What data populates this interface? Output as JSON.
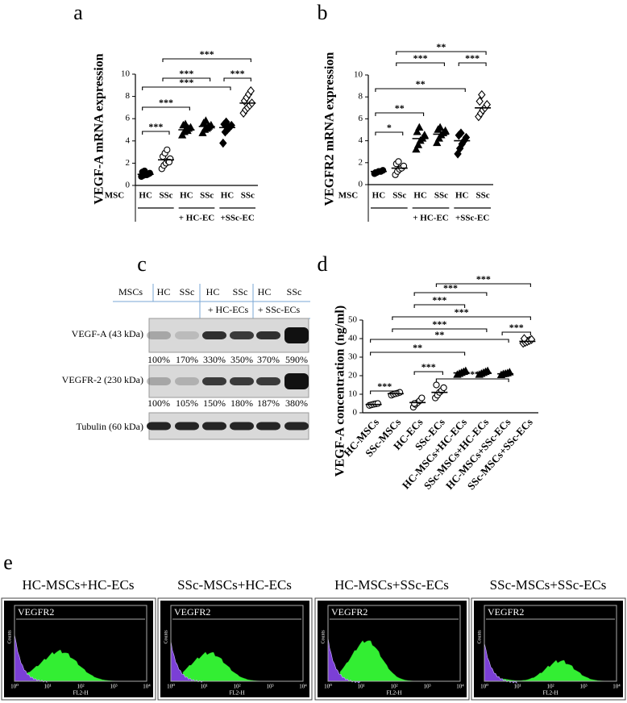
{
  "panels": [
    "a",
    "b",
    "c",
    "d",
    "e"
  ],
  "chart_data": [
    {
      "type": "dot",
      "ylabel": "VEGF-A mRNA expression",
      "ylim": [
        0,
        10
      ],
      "yticks": [
        0,
        2,
        4,
        6,
        8,
        10
      ],
      "row_label": "MSC",
      "categories": [
        "HC",
        "SSc",
        "HC",
        "SSc",
        "HC",
        "SSc"
      ],
      "group_labels": [
        null,
        "+ HC-EC",
        "+SSc-EC"
      ],
      "markers": [
        "circle",
        "circle-open",
        "triangle",
        "triangle",
        "diamond",
        "diamond-open"
      ],
      "points": [
        [
          0.8,
          0.9,
          1.0,
          1.0,
          1.1,
          1.2,
          1.3,
          0.95,
          1.05
        ],
        [
          1.5,
          1.8,
          2.0,
          2.2,
          2.4,
          2.6,
          2.9,
          3.2,
          2.1
        ],
        [
          4.5,
          4.8,
          5.0,
          5.1,
          5.2,
          5.4,
          5.5,
          4.9
        ],
        [
          4.7,
          5.0,
          5.1,
          5.3,
          5.4,
          5.6,
          5.8,
          5.2
        ],
        [
          3.8,
          4.8,
          5.0,
          5.2,
          5.4,
          5.5,
          5.7,
          5.3
        ],
        [
          6.5,
          6.8,
          7.0,
          7.2,
          7.4,
          7.6,
          7.9,
          8.2,
          8.5
        ]
      ],
      "means": [
        1.0,
        2.3,
        5.0,
        5.3,
        5.2,
        7.4
      ],
      "brackets": [
        {
          "pair": [
            1,
            5
          ],
          "label": "***"
        },
        {
          "pair": [
            1,
            3
          ],
          "label": "***"
        },
        {
          "pair": [
            4,
            5
          ],
          "label": "***"
        },
        {
          "pair": [
            0,
            4
          ],
          "label": "***"
        },
        {
          "pair": [
            0,
            2
          ],
          "label": "***"
        },
        {
          "pair": [
            0,
            1
          ],
          "label": "***"
        }
      ]
    },
    {
      "type": "dot",
      "ylabel": "VEGFR2 mRNA expression",
      "ylim": [
        0,
        10
      ],
      "yticks": [
        0,
        2,
        4,
        6,
        8,
        10
      ],
      "row_label": "MSC",
      "categories": [
        "HC",
        "SSc",
        "HC",
        "SSc",
        "HC",
        "SSc"
      ],
      "group_labels": [
        null,
        "+ HC-EC",
        "+SSc-EC"
      ],
      "markers": [
        "circle",
        "circle-open",
        "triangle",
        "triangle",
        "diamond",
        "diamond-open"
      ],
      "points": [
        [
          1.0,
          1.1,
          1.2,
          1.2,
          1.3,
          1.1
        ],
        [
          0.9,
          1.2,
          1.4,
          1.5,
          1.7,
          1.9,
          2.1
        ],
        [
          3.2,
          3.6,
          4.0,
          4.2,
          4.5,
          4.8,
          5.2
        ],
        [
          3.8,
          4.2,
          4.5,
          4.7,
          4.9,
          5.0,
          5.2
        ],
        [
          2.8,
          3.3,
          3.7,
          4.0,
          4.3,
          4.5,
          4.7
        ],
        [
          6.2,
          6.5,
          6.8,
          7.0,
          7.3,
          7.6,
          8.2
        ]
      ],
      "means": [
        1.2,
        1.5,
        4.2,
        4.6,
        4.0,
        7.0
      ],
      "brackets": [
        {
          "pair": [
            1,
            5
          ],
          "label": "**"
        },
        {
          "pair": [
            1,
            3
          ],
          "label": "***"
        },
        {
          "pair": [
            4,
            5
          ],
          "label": "***"
        },
        {
          "pair": [
            0,
            4
          ],
          "label": "**"
        },
        {
          "pair": [
            0,
            2
          ],
          "label": "**"
        },
        {
          "pair": [
            0,
            1
          ],
          "label": "*"
        }
      ]
    },
    {
      "type": "dot",
      "ylabel": "VEGF-A concentration (ng/ml)",
      "ylim": [
        0,
        50
      ],
      "yticks": [
        0,
        10,
        20,
        30,
        40,
        50
      ],
      "categories": [
        "HC-MSCs",
        "SSc-MSCs",
        "HC-ECs",
        "SSc-ECs",
        "HC-MSCs+HC-ECs",
        "SSc-MSCs+HC-ECs",
        "HC-MSCs+SSc-ECs",
        "SSc-MSCs+SSc-ECs"
      ],
      "markers": [
        "circle-open",
        "circle-open",
        "circle-open",
        "circle-open",
        "triangle",
        "triangle",
        "triangle",
        "diamond-open"
      ],
      "points": [
        [
          4.0,
          4.3,
          4.6,
          4.8,
          5.0
        ],
        [
          9.5,
          10.0,
          10.3,
          10.6,
          11.0
        ],
        [
          3.0,
          4.5,
          5.5,
          6.5,
          8.0,
          5.0
        ],
        [
          8.0,
          9.5,
          11.0,
          12.0,
          13.5,
          15.0
        ],
        [
          20.5,
          21.0,
          21.5,
          22.0,
          22.5
        ],
        [
          20.5,
          21.0,
          21.5,
          22.0,
          22.5
        ],
        [
          20.3,
          20.8,
          21.0,
          21.3,
          21.8
        ],
        [
          37.5,
          38.0,
          38.5,
          39.0,
          39.5,
          40.0
        ]
      ],
      "means": [
        4.5,
        10.3,
        5.5,
        11.0,
        21.5,
        21.5,
        21.0,
        38.5
      ],
      "brackets": [
        {
          "pair": [
            3,
            7
          ],
          "label": "***"
        },
        {
          "pair": [
            2,
            5
          ],
          "label": "***"
        },
        {
          "pair": [
            2,
            4
          ],
          "label": "***"
        },
        {
          "pair": [
            1,
            7
          ],
          "label": "***"
        },
        {
          "pair": [
            1,
            5
          ],
          "label": "***"
        },
        {
          "pair": [
            0,
            6
          ],
          "label": "**"
        },
        {
          "pair": [
            6,
            7
          ],
          "label": "***"
        },
        {
          "pair": [
            0,
            4
          ],
          "label": "**"
        },
        {
          "pair": [
            2,
            3
          ],
          "label": "***"
        },
        {
          "pair": [
            3,
            6
          ],
          "label": "***"
        },
        {
          "pair": [
            0,
            1
          ],
          "label": "***"
        }
      ]
    }
  ],
  "blot": {
    "header": [
      "MSCs",
      "HC",
      "SSc",
      "HC",
      "SSc",
      "HC",
      "SSc"
    ],
    "subheader": [
      "+ HC-ECs",
      "+ SSc-ECs"
    ],
    "rows": [
      {
        "label": "VEGF-A (43 kDa)",
        "values": [
          "100%",
          "170%",
          "330%",
          "350%",
          "370%",
          "590%"
        ]
      },
      {
        "label": "VEGFR-2 (230 kDa)",
        "values": [
          "100%",
          "105%",
          "150%",
          "180%",
          "187%",
          "380%"
        ]
      },
      {
        "label": "Tubulin (60 kDa)"
      }
    ]
  },
  "flow": {
    "plots": [
      {
        "title": "HC-MSCs+HC-ECs",
        "marker": "VEGFR2"
      },
      {
        "title": "SSc-MSCs+HC-ECs",
        "marker": "VEGFR2"
      },
      {
        "title": "HC-MSCs+SSc-ECs",
        "marker": "VEGFR2"
      },
      {
        "title": "SSc-MSCs+SSc-ECs",
        "marker": "VEGFR2"
      }
    ],
    "y_label": "Counts",
    "x_label": "FL2-H",
    "x_ticks": [
      "10⁰",
      "10¹",
      "10²",
      "10³",
      "10⁴"
    ]
  }
}
